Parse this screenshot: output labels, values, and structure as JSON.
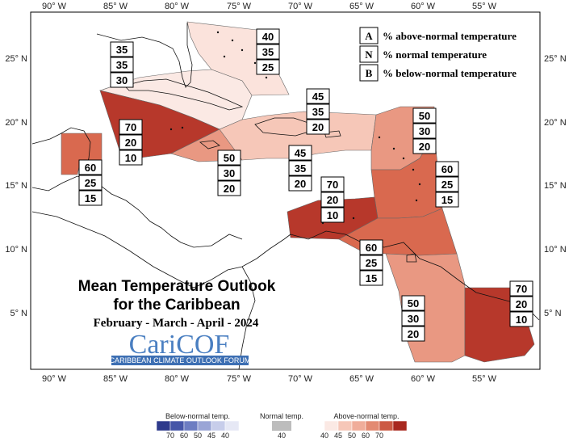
{
  "map": {
    "title_line1": "Mean Temperature Outlook",
    "title_line2": "for the Caribbean",
    "period": "February - March - April - 2024",
    "logo_text": "CariCOF",
    "logo_caption": "CARIBBEAN CLIMATE OUTLOOK FORUM",
    "lon_ticks": [
      "90° W",
      "85° W",
      "80° W",
      "75° W",
      "70° W",
      "65° W",
      "60° W",
      "55° W"
    ],
    "lat_ticks": [
      "25° N",
      "20° N",
      "15° N",
      "10° N",
      "5° N"
    ],
    "key": [
      {
        "letter": "A",
        "text": "% above-normal temperature"
      },
      {
        "letter": "N",
        "text": "% normal temperature"
      },
      {
        "letter": "B",
        "text": "% below-normal temperature"
      }
    ]
  },
  "regions": [
    {
      "id": "bahamas",
      "above": "40",
      "normal": "35",
      "below": "25",
      "color": "#fbe3dc"
    },
    {
      "id": "cuba-west",
      "above": "35",
      "normal": "35",
      "below": "30",
      "color": "#fbe9e4"
    },
    {
      "id": "belize",
      "above": "60",
      "normal": "25",
      "below": "15",
      "color": "#d9694f"
    },
    {
      "id": "cayman-jamaica",
      "above": "70",
      "normal": "20",
      "below": "10",
      "color": "#b7382b"
    },
    {
      "id": "jamaica-south",
      "above": "50",
      "normal": "30",
      "below": "20",
      "color": "#e99882"
    },
    {
      "id": "hispaniola",
      "above": "45",
      "normal": "35",
      "below": "20",
      "color": "#f6c7b8"
    },
    {
      "id": "hispaniola-south",
      "above": "45",
      "normal": "35",
      "below": "20",
      "color": "#f6c7b8"
    },
    {
      "id": "leewards",
      "above": "50",
      "normal": "30",
      "below": "20",
      "color": "#e99882"
    },
    {
      "id": "windwards",
      "above": "60",
      "normal": "25",
      "below": "15",
      "color": "#d9694f"
    },
    {
      "id": "abc-islands",
      "above": "70",
      "normal": "20",
      "below": "10",
      "color": "#b7382b"
    },
    {
      "id": "trinidad",
      "above": "60",
      "normal": "25",
      "below": "15",
      "color": "#d9694f"
    },
    {
      "id": "guyana",
      "above": "50",
      "normal": "30",
      "below": "20",
      "color": "#e99882"
    },
    {
      "id": "suriname",
      "above": "70",
      "normal": "20",
      "below": "10",
      "color": "#b7382b"
    }
  ],
  "colorbar": {
    "below_title": "Below-normal temp.",
    "normal_title": "Normal temp.",
    "above_title": "Above-normal temp.",
    "below_ticks": [
      "70",
      "60",
      "50",
      "45",
      "40"
    ],
    "normal_ticks": [
      "40"
    ],
    "above_ticks": [
      "40",
      "45",
      "50",
      "60",
      "70"
    ],
    "below_colors": [
      "#2e3a8c",
      "#4656a8",
      "#6d7dc2",
      "#9aa5d6",
      "#c7cdea",
      "#e6e8f5"
    ],
    "normal_color": "#bdbdbd",
    "above_colors": [
      "#fbe9e4",
      "#f6c7b8",
      "#f0ad9a",
      "#e38a72",
      "#cc5a44",
      "#a8281f"
    ]
  }
}
